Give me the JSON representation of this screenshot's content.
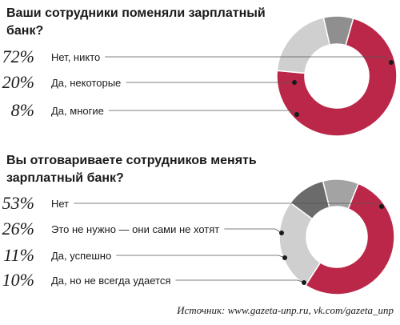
{
  "chart_data": [
    {
      "type": "pie",
      "donut": true,
      "title": "Ваши сотрудники поменяли зарплатный банк?",
      "categories": [
        "Нет, никто",
        "Да, некоторые",
        "Да, многие"
      ],
      "values": [
        72,
        20,
        8
      ],
      "value_labels": [
        "72%",
        "20%",
        "8%"
      ],
      "colors": [
        "#bb2748",
        "#cfcfcf",
        "#8f8f8f"
      ]
    },
    {
      "type": "pie",
      "donut": true,
      "title": "Вы отговариваете сотрудников менять зарплатный банк?",
      "categories": [
        "Нет",
        "Это не нужно — они сами не хотят",
        "Да, успешно",
        "Да, но не всегда удается"
      ],
      "values": [
        53,
        26,
        11,
        10
      ],
      "value_labels": [
        "53%",
        "26%",
        "11%",
        "10%"
      ],
      "colors": [
        "#bb2748",
        "#cfcfcf",
        "#6b6b6b",
        "#a3a3a3"
      ]
    }
  ],
  "source": "Источник: www.gazeta-unp.ru, vk.com/gazeta_unp"
}
